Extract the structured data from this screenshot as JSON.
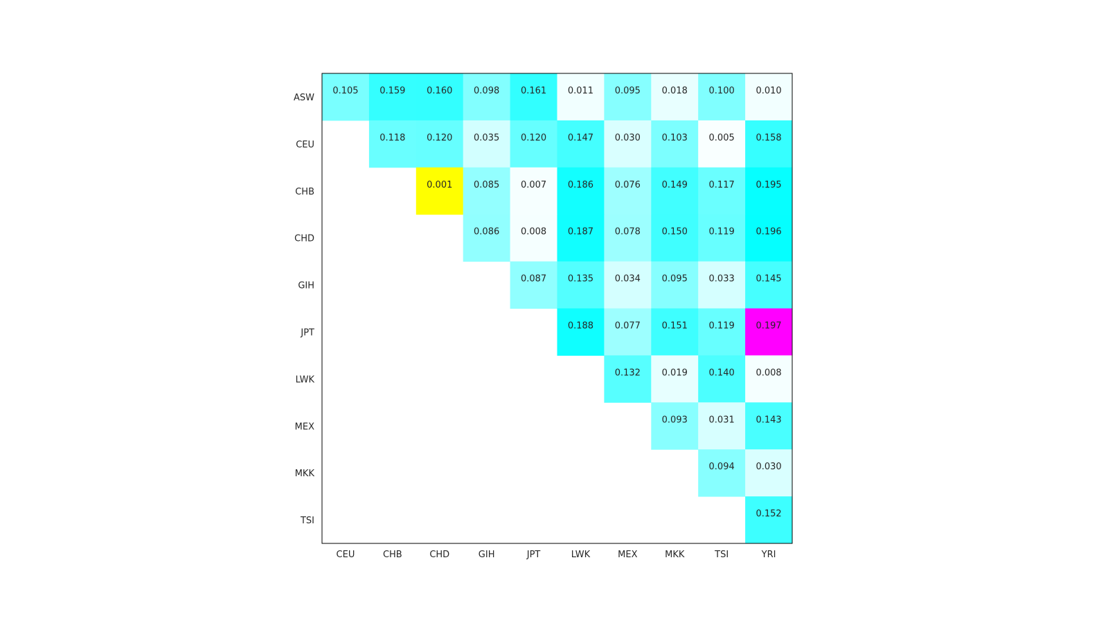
{
  "chart_data": {
    "type": "heatmap",
    "title": "",
    "xlabel": "",
    "ylabel": "",
    "grid": false,
    "legend": "none",
    "x_categories": [
      "CEU",
      "CHB",
      "CHD",
      "GIH",
      "JPT",
      "LWK",
      "MEX",
      "MKK",
      "TSI",
      "YRI"
    ],
    "y_categories": [
      "ASW",
      "CEU",
      "CHB",
      "CHD",
      "GIH",
      "JPT",
      "LWK",
      "MEX",
      "MKK",
      "TSI"
    ],
    "values": [
      [
        0.105,
        0.159,
        0.16,
        0.098,
        0.161,
        0.011,
        0.095,
        0.018,
        0.1,
        0.01
      ],
      [
        null,
        0.118,
        0.12,
        0.035,
        0.12,
        0.147,
        0.03,
        0.103,
        0.005,
        0.158
      ],
      [
        null,
        null,
        0.001,
        0.085,
        0.007,
        0.186,
        0.076,
        0.149,
        0.117,
        0.195
      ],
      [
        null,
        null,
        null,
        0.086,
        0.008,
        0.187,
        0.078,
        0.15,
        0.119,
        0.196
      ],
      [
        null,
        null,
        null,
        null,
        0.087,
        0.135,
        0.034,
        0.095,
        0.033,
        0.145
      ],
      [
        null,
        null,
        null,
        null,
        null,
        0.188,
        0.077,
        0.151,
        0.119,
        0.197
      ],
      [
        null,
        null,
        null,
        null,
        null,
        null,
        0.132,
        0.019,
        0.14,
        0.008
      ],
      [
        null,
        null,
        null,
        null,
        null,
        null,
        null,
        0.093,
        0.031,
        0.143
      ],
      [
        null,
        null,
        null,
        null,
        null,
        null,
        null,
        null,
        0.094,
        0.03
      ],
      [
        null,
        null,
        null,
        null,
        null,
        null,
        null,
        null,
        null,
        0.152
      ]
    ],
    "colormap": {
      "low": "#ffffff",
      "high": "#00ffff",
      "range": [
        0,
        0.2
      ],
      "min_highlight": "#ffff00",
      "max_highlight": "#ff00ff"
    },
    "axis_color": "#000000",
    "label_color": "#262626"
  }
}
